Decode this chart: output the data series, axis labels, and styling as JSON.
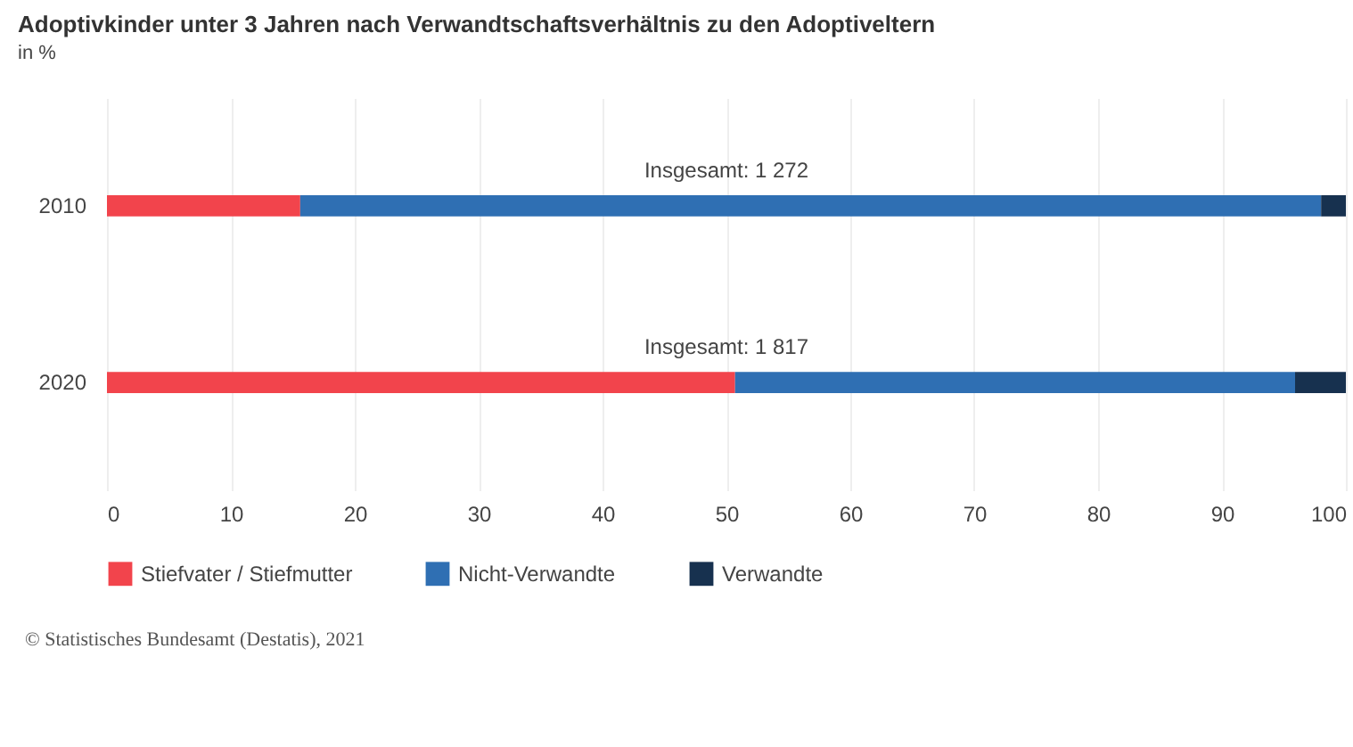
{
  "chart_data": {
    "type": "bar",
    "orientation": "horizontal",
    "stacked": true,
    "title": "Adoptivkinder unter 3 Jahren nach Verwandtschaftsverhältnis zu den Adoptiveltern",
    "subtitle": "in %",
    "categories": [
      "2010",
      "2020"
    ],
    "series": [
      {
        "name": "Stiefvater / Stiefmutter",
        "color": "#f2444c",
        "values": [
          15.6,
          50.7
        ]
      },
      {
        "name": "Nicht-Verwandte",
        "color": "#2f6fb3",
        "values": [
          82.4,
          45.2
        ]
      },
      {
        "name": "Verwandte",
        "color": "#17314f",
        "values": [
          2.0,
          4.1
        ]
      }
    ],
    "xlim": [
      0,
      100
    ],
    "xticks": [
      0,
      10,
      20,
      30,
      40,
      50,
      60,
      70,
      80,
      90,
      100
    ],
    "grid": "x",
    "legend": "bottom",
    "annotations": [
      "Insgesamt: 1 272",
      "Insgesamt: 1 817",
      "© Statistisches Bundesamt (Destatis), 2021"
    ]
  }
}
